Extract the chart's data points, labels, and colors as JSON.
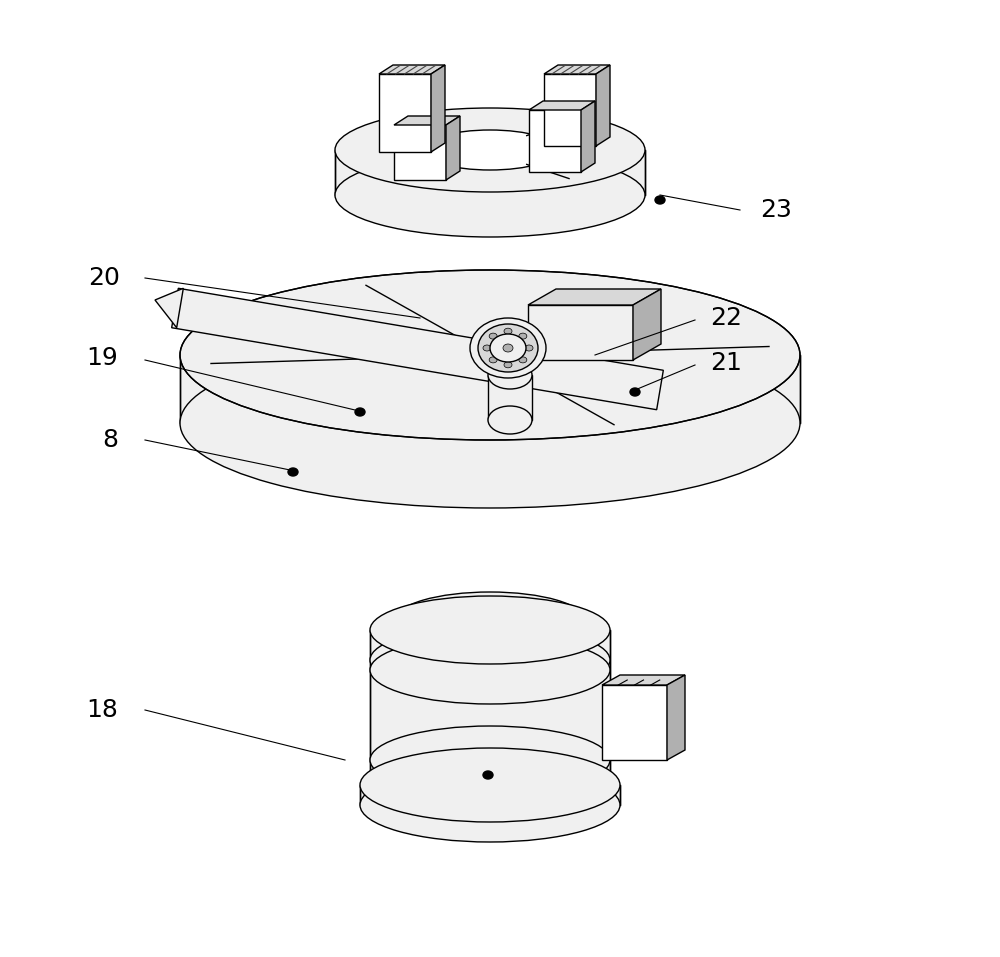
{
  "bg_color": "#ffffff",
  "line_color": "#000000",
  "fill_white": "#ffffff",
  "fill_light": "#f0f0f0",
  "fill_mid": "#d8d8d8",
  "fill_dark": "#b0b0b0",
  "fill_darker": "#808080",
  "lw_main": 1.0,
  "lw_thick": 1.5,
  "label_fs": 18,
  "fig_w": 10.0,
  "fig_h": 9.57
}
